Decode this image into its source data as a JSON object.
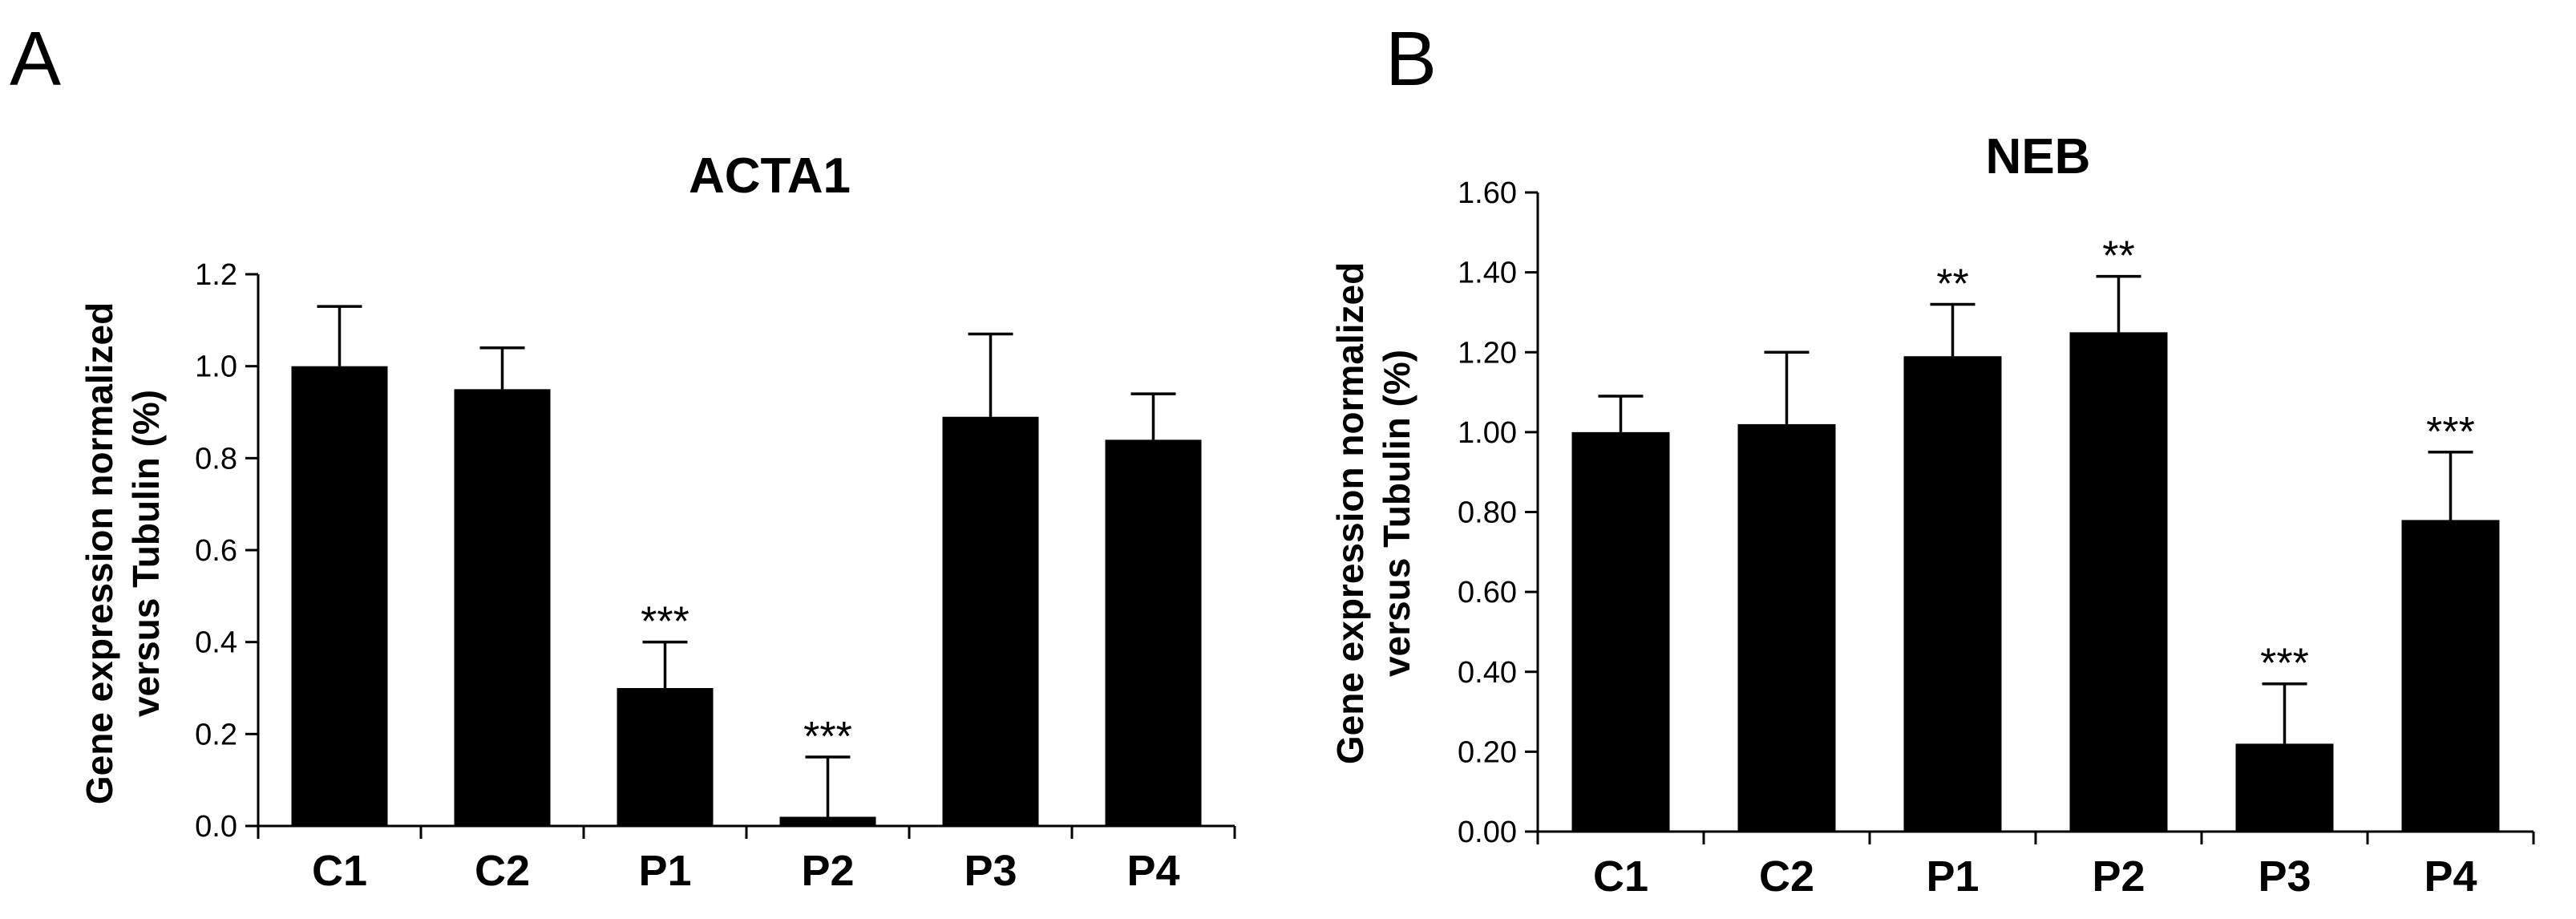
{
  "chart_data": [
    {
      "panel": "A",
      "type": "bar",
      "title": "ACTA1",
      "ylabel_line1": "Gene expression normalized",
      "ylabel_line2": "versus Tubulin (%)",
      "xlabel": "",
      "categories": [
        "C1",
        "C2",
        "P1",
        "P2",
        "P3",
        "P4"
      ],
      "values": [
        1.0,
        0.95,
        0.3,
        0.02,
        0.89,
        0.84
      ],
      "error_upper": [
        1.13,
        1.04,
        0.4,
        0.15,
        1.07,
        0.94
      ],
      "significance": [
        "",
        "",
        "***",
        "***",
        "",
        ""
      ],
      "ylim": [
        0,
        1.2
      ],
      "yticks": [
        0,
        0.2,
        0.4,
        0.6,
        0.8,
        1.0,
        1.2
      ],
      "ytick_labels": [
        "0.0",
        "0.2",
        "0.4",
        "0.6",
        "0.8",
        "1.0",
        "1.2"
      ],
      "color": "#000000",
      "grid": false
    },
    {
      "panel": "B",
      "type": "bar",
      "title": "NEB",
      "ylabel_line1": "Gene expression normalized",
      "ylabel_line2": "versus Tubulin (%)",
      "xlabel": "",
      "categories": [
        "C1",
        "C2",
        "P1",
        "P2",
        "P3",
        "P4"
      ],
      "values": [
        1.0,
        1.02,
        1.19,
        1.25,
        0.22,
        0.78
      ],
      "error_upper": [
        1.09,
        1.2,
        1.32,
        1.39,
        0.37,
        0.95
      ],
      "significance": [
        "",
        "",
        "**",
        "**",
        "***",
        "***"
      ],
      "ylim": [
        0,
        1.6
      ],
      "yticks": [
        0,
        0.2,
        0.4,
        0.6,
        0.8,
        1.0,
        1.2,
        1.4,
        1.6
      ],
      "ytick_labels": [
        "0.00",
        "0.20",
        "0.40",
        "0.60",
        "0.80",
        "1.00",
        "1.20",
        "1.40",
        "1.60"
      ],
      "color": "#000000",
      "grid": false
    }
  ]
}
